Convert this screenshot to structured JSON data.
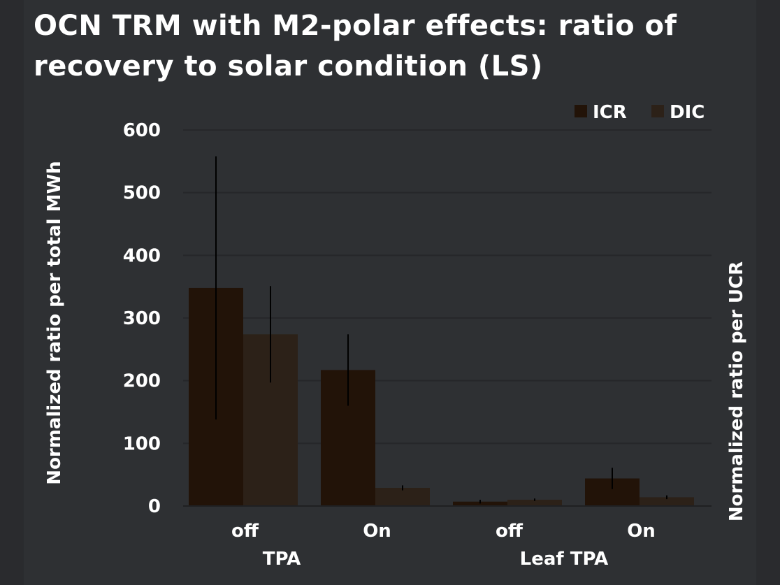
{
  "chart_data": {
    "type": "bar",
    "title": "OCN TRM with M2-polar effects: ratio of recovery to solar condition (LS)",
    "ylabel": "Normalized ratio per total MWh",
    "right_label": "Normalized ratio per UCR",
    "group_labels": [
      "TPA",
      "Leaf TPA"
    ],
    "categories": [
      "off",
      "On",
      "off",
      "On"
    ],
    "ylim": [
      0,
      600
    ],
    "yticks": [
      0,
      100,
      200,
      300,
      400,
      500,
      600
    ],
    "grid": true,
    "legend_position": "top-right",
    "series": [
      {
        "name": "ICR",
        "color": "#221308",
        "values": [
          348,
          217,
          7,
          44
        ],
        "error": [
          210,
          57,
          3,
          17
        ]
      },
      {
        "name": "DIC",
        "color": "#2c2118",
        "values": [
          274,
          29,
          10,
          14
        ],
        "error": [
          77,
          4,
          2,
          3
        ]
      }
    ]
  }
}
